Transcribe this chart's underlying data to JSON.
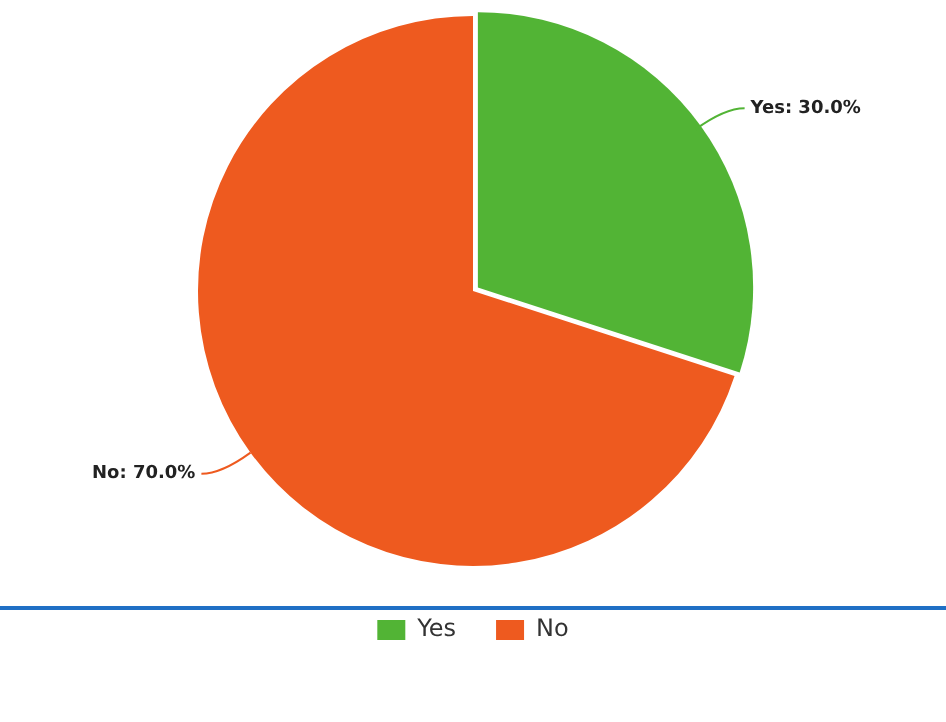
{
  "chart_data": {
    "type": "pie",
    "categories": [
      "Yes",
      "No"
    ],
    "values": [
      30,
      70
    ],
    "colors": [
      "#52b435",
      "#ee5a1f"
    ],
    "value_labels": [
      "Yes: 30.0%",
      "No: 70.0%"
    ],
    "legend": "bottom"
  }
}
